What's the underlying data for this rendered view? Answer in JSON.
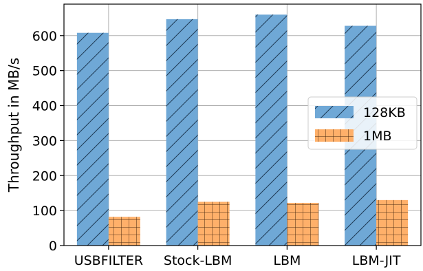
{
  "chart_data": {
    "type": "bar",
    "categories": [
      "USBFILTER",
      "Stock-LBM",
      "LBM",
      "LBM-JIT"
    ],
    "series": [
      {
        "name": "128KB",
        "values": [
          608,
          647,
          660,
          628
        ],
        "color": "#6fa8d6",
        "hatch": "diagonal"
      },
      {
        "name": "1MB",
        "values": [
          82,
          125,
          122,
          130
        ],
        "color": "#ffb06a",
        "hatch": "grid"
      }
    ],
    "title": "",
    "xlabel": "",
    "ylabel": "Throughput in MB/s",
    "ylim": [
      0,
      690
    ],
    "yticks": [
      0,
      100,
      200,
      300,
      400,
      500,
      600
    ],
    "grid": true,
    "legend_position": "center-right"
  }
}
